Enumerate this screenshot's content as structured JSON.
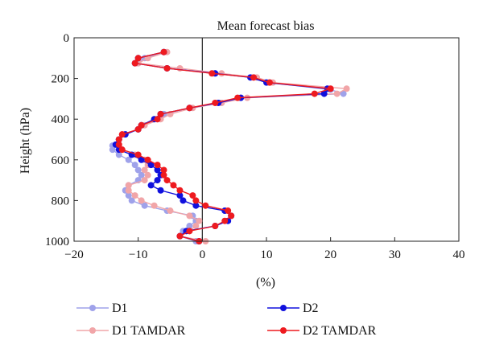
{
  "chart_data": {
    "type": "line",
    "title": "Mean forecast bias",
    "xlabel": "(%)",
    "ylabel": "Height (hPa)",
    "xlim": [
      -20,
      40
    ],
    "ylim": [
      0,
      1000
    ],
    "y_inverted": true,
    "xticks": [
      -20,
      -10,
      0,
      10,
      20,
      30,
      40
    ],
    "yticks": [
      0,
      200,
      400,
      600,
      800,
      1000
    ],
    "zero_line": true,
    "grid": false,
    "legend_position": "bottom",
    "series": [
      {
        "name": "D1",
        "color": "#9fa2ea",
        "points": [
          [
            -6,
            70
          ],
          [
            -9,
            100
          ],
          [
            -10,
            125
          ],
          [
            -5.5,
            150
          ],
          [
            2,
            175
          ],
          [
            8,
            195
          ],
          [
            10.5,
            220
          ],
          [
            20,
            255
          ],
          [
            22,
            275
          ],
          [
            6,
            295
          ],
          [
            3,
            320
          ],
          [
            -2,
            345
          ],
          [
            -6,
            375
          ],
          [
            -7,
            400
          ],
          [
            -9.5,
            430
          ],
          [
            -10,
            450
          ],
          [
            -12,
            475
          ],
          [
            -13,
            500
          ],
          [
            -14,
            530
          ],
          [
            -14,
            550
          ],
          [
            -13,
            575
          ],
          [
            -11.5,
            600
          ],
          [
            -10.5,
            625
          ],
          [
            -10,
            650
          ],
          [
            -9.5,
            675
          ],
          [
            -10,
            700
          ],
          [
            -11.5,
            725
          ],
          [
            -12,
            750
          ],
          [
            -11.5,
            775
          ],
          [
            -11,
            800
          ],
          [
            -9,
            825
          ],
          [
            -5.5,
            850
          ],
          [
            -1.5,
            875
          ],
          [
            -1,
            900
          ],
          [
            -2,
            925
          ],
          [
            -3,
            950
          ],
          [
            -3.5,
            975
          ],
          [
            -1,
            1000
          ]
        ]
      },
      {
        "name": "D1 TAMDAR",
        "color": "#f1a5a8",
        "points": [
          [
            -5.5,
            70
          ],
          [
            -8.5,
            100
          ],
          [
            -10,
            125
          ],
          [
            -3.5,
            150
          ],
          [
            3,
            175
          ],
          [
            8.5,
            195
          ],
          [
            11,
            220
          ],
          [
            22.5,
            250
          ],
          [
            21,
            275
          ],
          [
            7,
            295
          ],
          [
            3,
            320
          ],
          [
            -1.5,
            345
          ],
          [
            -5,
            375
          ],
          [
            -6.5,
            400
          ],
          [
            -9,
            430
          ],
          [
            -10,
            450
          ],
          [
            -12.5,
            475
          ],
          [
            -13,
            500
          ],
          [
            -13,
            530
          ],
          [
            -12.5,
            550
          ],
          [
            -10.5,
            575
          ],
          [
            -9,
            600
          ],
          [
            -8.5,
            625
          ],
          [
            -9,
            650
          ],
          [
            -8.5,
            675
          ],
          [
            -9,
            700
          ],
          [
            -11.5,
            725
          ],
          [
            -11.5,
            750
          ],
          [
            -10.5,
            775
          ],
          [
            -9.5,
            800
          ],
          [
            -7.5,
            825
          ],
          [
            -5,
            850
          ],
          [
            -2,
            875
          ],
          [
            -0.5,
            900
          ],
          [
            -1,
            925
          ],
          [
            -2,
            950
          ],
          [
            -3.5,
            975
          ],
          [
            0.5,
            1000
          ]
        ]
      },
      {
        "name": "D2",
        "color": "#1010dd",
        "points": [
          [
            -6,
            70
          ],
          [
            -10,
            100
          ],
          [
            -10.5,
            125
          ],
          [
            -5.5,
            150
          ],
          [
            2,
            175
          ],
          [
            7.5,
            195
          ],
          [
            10,
            220
          ],
          [
            19.5,
            250
          ],
          [
            19,
            275
          ],
          [
            6,
            295
          ],
          [
            2.5,
            320
          ],
          [
            -2,
            345
          ],
          [
            -6.5,
            375
          ],
          [
            -7.5,
            400
          ],
          [
            -9.5,
            430
          ],
          [
            -10,
            450
          ],
          [
            -12,
            475
          ],
          [
            -13,
            500
          ],
          [
            -13.5,
            525
          ],
          [
            -13,
            550
          ],
          [
            -11,
            575
          ],
          [
            -9.5,
            600
          ],
          [
            -8,
            625
          ],
          [
            -7,
            650
          ],
          [
            -6.5,
            675
          ],
          [
            -7,
            700
          ],
          [
            -8,
            725
          ],
          [
            -6.5,
            750
          ],
          [
            -3.5,
            775
          ],
          [
            -3,
            800
          ],
          [
            -1,
            825
          ],
          [
            3.5,
            850
          ],
          [
            4.5,
            875
          ],
          [
            4,
            900
          ],
          [
            2,
            925
          ],
          [
            -2.5,
            950
          ],
          [
            -3.5,
            975
          ],
          [
            -0.5,
            1000
          ]
        ]
      },
      {
        "name": "D2 TAMDAR",
        "color": "#ee1a1f",
        "points": [
          [
            -6,
            70
          ],
          [
            -10,
            100
          ],
          [
            -10.5,
            125
          ],
          [
            -5.5,
            150
          ],
          [
            1.5,
            175
          ],
          [
            8,
            195
          ],
          [
            10.5,
            220
          ],
          [
            20,
            250
          ],
          [
            17.5,
            275
          ],
          [
            5.5,
            295
          ],
          [
            2,
            320
          ],
          [
            -2,
            345
          ],
          [
            -6.5,
            375
          ],
          [
            -7,
            400
          ],
          [
            -9.5,
            430
          ],
          [
            -10,
            450
          ],
          [
            -12.5,
            475
          ],
          [
            -13,
            500
          ],
          [
            -13,
            525
          ],
          [
            -12.5,
            550
          ],
          [
            -10,
            575
          ],
          [
            -8.5,
            600
          ],
          [
            -7,
            625
          ],
          [
            -6,
            650
          ],
          [
            -6,
            675
          ],
          [
            -5.5,
            700
          ],
          [
            -4.5,
            725
          ],
          [
            -3.5,
            750
          ],
          [
            -1.5,
            775
          ],
          [
            -1,
            800
          ],
          [
            0.5,
            825
          ],
          [
            4,
            850
          ],
          [
            4.5,
            875
          ],
          [
            3.5,
            900
          ],
          [
            2,
            925
          ],
          [
            -2,
            950
          ],
          [
            -3.5,
            975
          ],
          [
            -0.5,
            1000
          ]
        ]
      }
    ]
  }
}
